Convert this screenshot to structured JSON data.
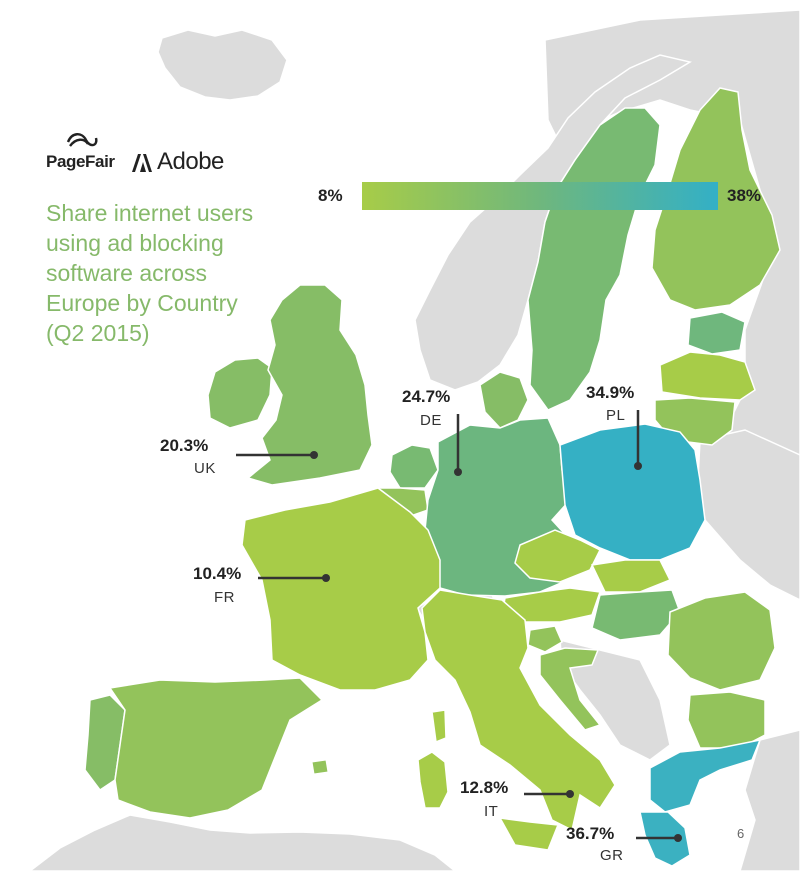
{
  "logos": {
    "pagefair": "PageFair",
    "pagefair_icon": "pagefair-swirl-icon",
    "adobe": "Adobe",
    "adobe_icon": "adobe-a-icon"
  },
  "title_lines": [
    "Share internet users",
    "using ad blocking",
    "software across",
    "Europe by Country",
    "(Q2 2015)"
  ],
  "legend": {
    "min": "8%",
    "max": "38%",
    "min_value": 8,
    "max_value": 38,
    "color_low": "#a7cc48",
    "color_mid": "#6fb77d",
    "color_high": "#33b0c6"
  },
  "colors": {
    "sea": "#ffffff",
    "non_eu_land": "#dcdcdc",
    "border": "#ffffff",
    "callout_line": "#333333"
  },
  "callouts": [
    {
      "country": "UK",
      "percent": "20.3%",
      "value": 20.3
    },
    {
      "country": "DE",
      "percent": "24.7%",
      "value": 24.7
    },
    {
      "country": "PL",
      "percent": "34.9%",
      "value": 34.9
    },
    {
      "country": "FR",
      "percent": "10.4%",
      "value": 10.4
    },
    {
      "country": "IT",
      "percent": "12.8%",
      "value": 12.8
    },
    {
      "country": "GR",
      "percent": "36.7%",
      "value": 36.7
    }
  ],
  "map_number": "6"
}
